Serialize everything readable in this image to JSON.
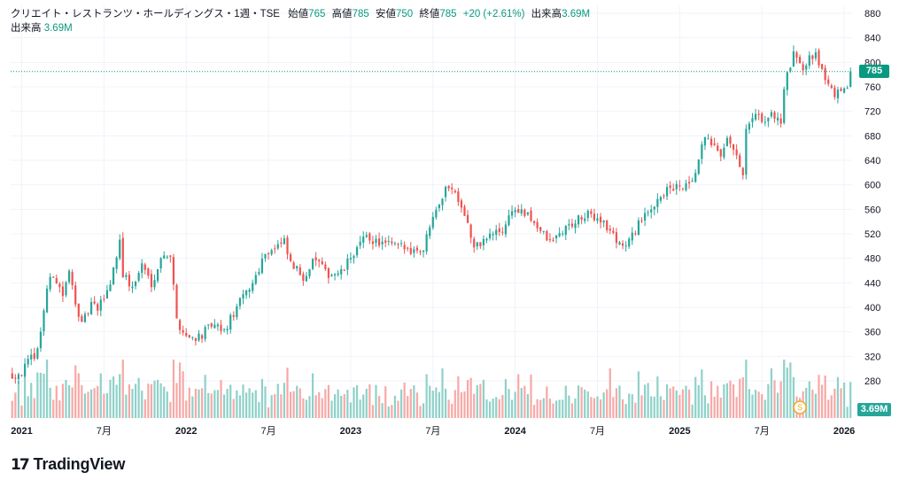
{
  "legend": {
    "symbol": "クリエイト・レストランツ・ホールディングス・1週・TSE",
    "open_label": "始値",
    "open": "765",
    "high_label": "高値",
    "high": "785",
    "low_label": "安値",
    "low": "750",
    "close_label": "終値",
    "close": "785",
    "change": "+20 (+2.61%)",
    "volume_label": "出来高",
    "volume": "3.69M",
    "volume_row_label": "出来高",
    "volume_row_value": "3.69M"
  },
  "badges": {
    "price": "785",
    "volume": "3.69M"
  },
  "brand": {
    "name": "TradingView"
  },
  "event_marker": {
    "label": "S"
  },
  "colors": {
    "up": "#26a69a",
    "down": "#ef5350",
    "up_vol": "#8fd1c9",
    "down_vol": "#f7a9a7",
    "grid": "#f0f3fa",
    "axis_text": "#131722",
    "price_line": "#089981"
  },
  "chart_data": {
    "type": "candlestick",
    "title": "クリエイト・レストランツ・ホールディングス・1週・TSE",
    "y_ticks": [
      280,
      320,
      360,
      400,
      440,
      480,
      520,
      560,
      600,
      640,
      680,
      720,
      760,
      800,
      840,
      880
    ],
    "ylim": [
      240,
      895
    ],
    "x_labels": [
      {
        "label": "2021",
        "week": 3
      },
      {
        "label": "7月",
        "week": 29
      },
      {
        "label": "2022",
        "week": 55
      },
      {
        "label": "7月",
        "week": 81
      },
      {
        "label": "2023",
        "week": 107
      },
      {
        "label": "7月",
        "week": 133
      },
      {
        "label": "2024",
        "week": 159
      },
      {
        "label": "7月",
        "week": 185
      },
      {
        "label": "2025",
        "week": 211
      },
      {
        "label": "7月",
        "week": 237
      },
      {
        "label": "2026",
        "week": 263
      }
    ],
    "total_weeks": 266,
    "current_price": 785,
    "last_volume": "3.69M",
    "event_week": 249,
    "keypoints": [
      [
        0,
        290
      ],
      [
        3,
        295
      ],
      [
        8,
        330
      ],
      [
        11,
        430
      ],
      [
        13,
        455
      ],
      [
        16,
        420
      ],
      [
        18,
        455
      ],
      [
        22,
        370
      ],
      [
        25,
        405
      ],
      [
        27,
        395
      ],
      [
        31,
        440
      ],
      [
        34,
        510
      ],
      [
        35,
        455
      ],
      [
        38,
        430
      ],
      [
        41,
        470
      ],
      [
        44,
        440
      ],
      [
        48,
        490
      ],
      [
        50,
        485
      ],
      [
        52,
        380
      ],
      [
        54,
        360
      ],
      [
        56,
        350
      ],
      [
        60,
        355
      ],
      [
        63,
        370
      ],
      [
        67,
        360
      ],
      [
        71,
        400
      ],
      [
        76,
        440
      ],
      [
        80,
        490
      ],
      [
        86,
        505
      ],
      [
        88,
        470
      ],
      [
        92,
        450
      ],
      [
        96,
        480
      ],
      [
        99,
        455
      ],
      [
        104,
        455
      ],
      [
        108,
        490
      ],
      [
        112,
        515
      ],
      [
        116,
        505
      ],
      [
        121,
        500
      ],
      [
        126,
        495
      ],
      [
        130,
        495
      ],
      [
        133,
        555
      ],
      [
        138,
        600
      ],
      [
        141,
        580
      ],
      [
        143,
        555
      ],
      [
        146,
        495
      ],
      [
        148,
        505
      ],
      [
        152,
        520
      ],
      [
        155,
        525
      ],
      [
        158,
        560
      ],
      [
        161,
        555
      ],
      [
        165,
        540
      ],
      [
        167,
        525
      ],
      [
        170,
        505
      ],
      [
        174,
        525
      ],
      [
        178,
        540
      ],
      [
        182,
        550
      ],
      [
        186,
        545
      ],
      [
        188,
        530
      ],
      [
        191,
        510
      ],
      [
        194,
        500
      ],
      [
        196,
        515
      ],
      [
        198,
        540
      ],
      [
        201,
        550
      ],
      [
        204,
        580
      ],
      [
        207,
        590
      ],
      [
        210,
        595
      ],
      [
        213,
        595
      ],
      [
        215,
        600
      ],
      [
        218,
        660
      ],
      [
        220,
        680
      ],
      [
        222,
        660
      ],
      [
        224,
        640
      ],
      [
        226,
        670
      ],
      [
        228,
        660
      ],
      [
        231,
        610
      ],
      [
        232,
        690
      ],
      [
        235,
        710
      ],
      [
        238,
        705
      ],
      [
        241,
        715
      ],
      [
        243,
        700
      ],
      [
        244,
        760
      ],
      [
        247,
        810
      ],
      [
        249,
        805
      ],
      [
        250,
        790
      ],
      [
        252,
        815
      ],
      [
        254,
        810
      ],
      [
        256,
        790
      ],
      [
        258,
        760
      ],
      [
        260,
        750
      ],
      [
        262,
        745
      ],
      [
        264,
        765
      ],
      [
        265,
        785
      ]
    ]
  }
}
